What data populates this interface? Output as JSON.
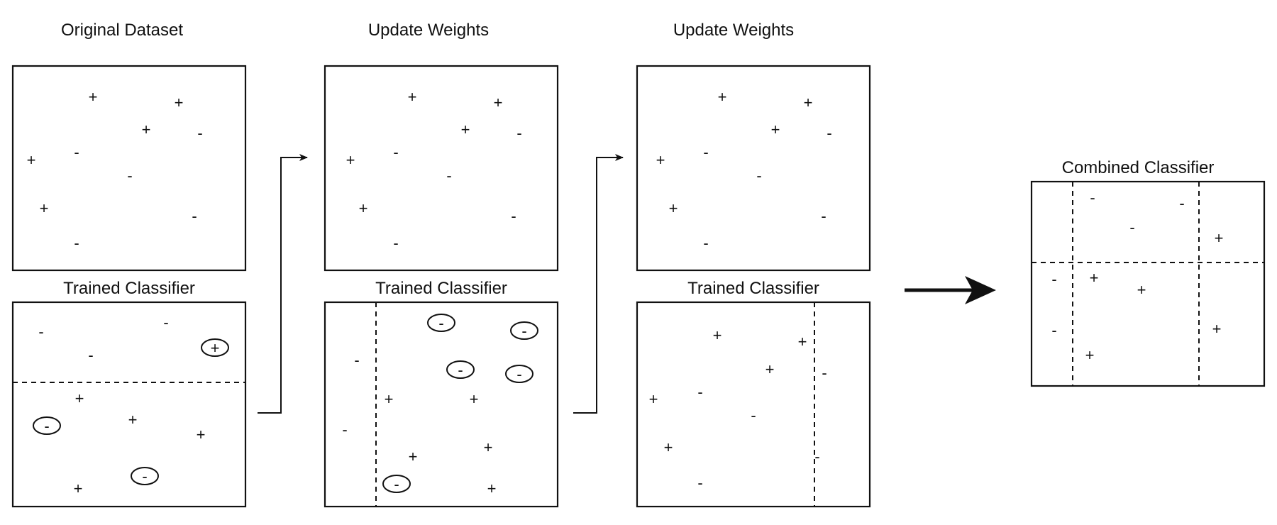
{
  "colors": {
    "ink": "#111111",
    "background": "#ffffff"
  },
  "labels": {
    "original_dataset": "Original Dataset",
    "update_weights_1": "Update Weights",
    "update_weights_2": "Update Weights",
    "trained_classifier_1": "Trained Classifier",
    "trained_classifier_2": "Trained Classifier",
    "trained_classifier_3": "Trained Classifier",
    "combined_classifier": "Combined Classifier"
  },
  "symbols": {
    "plus": "+",
    "minus": "-"
  },
  "icons": {
    "flow_arrow_1": "right-arrow-icon",
    "flow_arrow_2": "right-arrow-icon",
    "combine_arrow": "bold-right-arrow-icon"
  }
}
